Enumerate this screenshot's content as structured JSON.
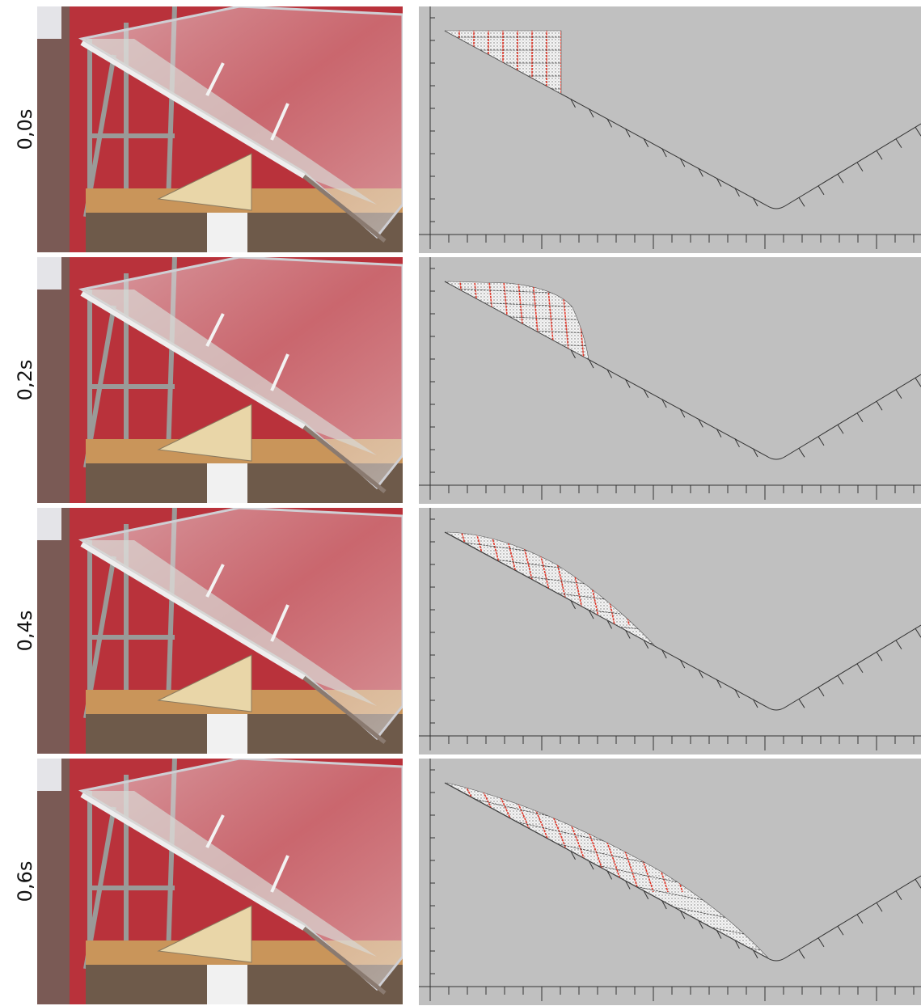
{
  "rows": [
    {
      "label": "0,0s"
    },
    {
      "label": "0,2s"
    },
    {
      "label": "0,4s"
    },
    {
      "label": "0,6s"
    }
  ]
}
